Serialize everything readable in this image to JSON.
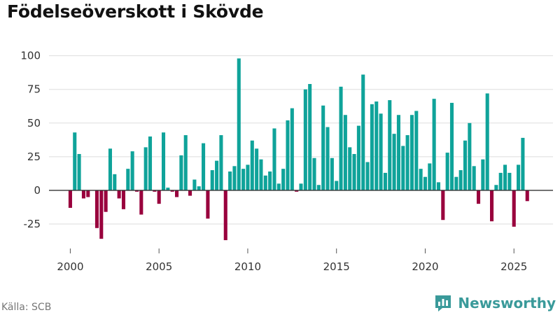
{
  "title": "Födelseöverskott i Skövde",
  "source": "Källa: SCB",
  "brand": {
    "name": "Newsworthy",
    "icon": "newsworthy-logo-icon"
  },
  "colors": {
    "positive": "#0fa39a",
    "negative": "#99003d",
    "grid": "#dddddd",
    "zero_line": "#333333",
    "brand": "#3a9a9a"
  },
  "chart_data": {
    "type": "bar",
    "title": "Födelseöverskott i Skövde",
    "xlabel": "",
    "ylabel": "",
    "x_ticks": [
      "2000",
      "2005",
      "2010",
      "2015",
      "2020",
      "2025"
    ],
    "y_ticks": [
      "-25",
      "0",
      "25",
      "50",
      "75",
      "100"
    ],
    "xlim": [
      1998.8,
      2027.2
    ],
    "ylim": [
      -38,
      105
    ],
    "grid": true,
    "legend": "none",
    "bar_width_years": 0.2,
    "values": [
      [
        2000.0,
        -13
      ],
      [
        2000.25,
        43
      ],
      [
        2000.5,
        27
      ],
      [
        2000.75,
        -6
      ],
      [
        2001.0,
        -5
      ],
      [
        2001.25,
        0
      ],
      [
        2001.5,
        -28
      ],
      [
        2001.75,
        -36
      ],
      [
        2002.0,
        -16
      ],
      [
        2002.25,
        31
      ],
      [
        2002.5,
        12
      ],
      [
        2002.75,
        -6
      ],
      [
        2003.0,
        -14
      ],
      [
        2003.25,
        16
      ],
      [
        2003.5,
        29
      ],
      [
        2003.75,
        -1
      ],
      [
        2004.0,
        -18
      ],
      [
        2004.25,
        32
      ],
      [
        2004.5,
        40
      ],
      [
        2004.75,
        -1
      ],
      [
        2005.0,
        -10
      ],
      [
        2005.25,
        43
      ],
      [
        2005.5,
        2
      ],
      [
        2005.75,
        -1
      ],
      [
        2006.0,
        -5
      ],
      [
        2006.25,
        26
      ],
      [
        2006.5,
        41
      ],
      [
        2006.75,
        -4
      ],
      [
        2007.0,
        8
      ],
      [
        2007.25,
        3
      ],
      [
        2007.5,
        35
      ],
      [
        2007.75,
        -21
      ],
      [
        2008.0,
        15
      ],
      [
        2008.25,
        22
      ],
      [
        2008.5,
        41
      ],
      [
        2008.75,
        -37
      ],
      [
        2009.0,
        14
      ],
      [
        2009.25,
        18
      ],
      [
        2009.5,
        98
      ],
      [
        2009.75,
        16
      ],
      [
        2010.0,
        19
      ],
      [
        2010.25,
        37
      ],
      [
        2010.5,
        31
      ],
      [
        2010.75,
        23
      ],
      [
        2011.0,
        11
      ],
      [
        2011.25,
        14
      ],
      [
        2011.5,
        46
      ],
      [
        2011.75,
        5
      ],
      [
        2012.0,
        16
      ],
      [
        2012.25,
        52
      ],
      [
        2012.5,
        61
      ],
      [
        2012.75,
        -1
      ],
      [
        2013.0,
        5
      ],
      [
        2013.25,
        75
      ],
      [
        2013.5,
        79
      ],
      [
        2013.75,
        24
      ],
      [
        2014.0,
        4
      ],
      [
        2014.25,
        63
      ],
      [
        2014.5,
        47
      ],
      [
        2014.75,
        24
      ],
      [
        2015.0,
        7
      ],
      [
        2015.25,
        77
      ],
      [
        2015.5,
        56
      ],
      [
        2015.75,
        32
      ],
      [
        2016.0,
        27
      ],
      [
        2016.25,
        48
      ],
      [
        2016.5,
        86
      ],
      [
        2016.75,
        21
      ],
      [
        2017.0,
        64
      ],
      [
        2017.25,
        66
      ],
      [
        2017.5,
        57
      ],
      [
        2017.75,
        13
      ],
      [
        2018.0,
        67
      ],
      [
        2018.25,
        42
      ],
      [
        2018.5,
        56
      ],
      [
        2018.75,
        33
      ],
      [
        2019.0,
        41
      ],
      [
        2019.25,
        56
      ],
      [
        2019.5,
        59
      ],
      [
        2019.75,
        16
      ],
      [
        2020.0,
        10
      ],
      [
        2020.25,
        20
      ],
      [
        2020.5,
        68
      ],
      [
        2020.75,
        6
      ],
      [
        2021.0,
        -22
      ],
      [
        2021.25,
        28
      ],
      [
        2021.5,
        65
      ],
      [
        2021.75,
        10
      ],
      [
        2022.0,
        15
      ],
      [
        2022.25,
        37
      ],
      [
        2022.5,
        50
      ],
      [
        2022.75,
        18
      ],
      [
        2023.0,
        -10
      ],
      [
        2023.25,
        23
      ],
      [
        2023.5,
        72
      ],
      [
        2023.75,
        -23
      ],
      [
        2024.0,
        4
      ],
      [
        2024.25,
        13
      ],
      [
        2024.5,
        19
      ],
      [
        2024.75,
        13
      ],
      [
        2025.0,
        -27
      ],
      [
        2025.25,
        19
      ],
      [
        2025.5,
        39
      ],
      [
        2025.75,
        -8
      ]
    ]
  }
}
